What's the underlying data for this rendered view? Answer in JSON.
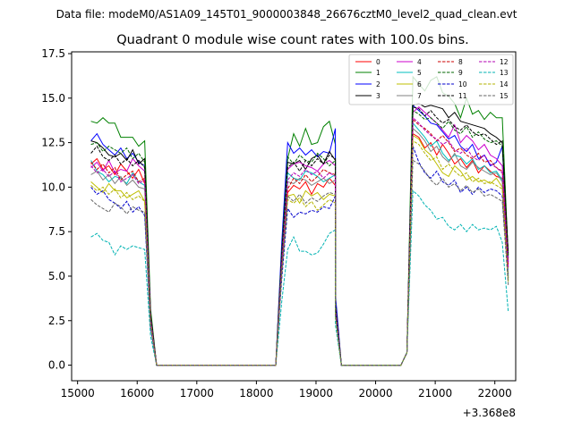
{
  "chart_data": {
    "type": "line",
    "suptitle": "Data file: modeM0/AS1A09_145T01_9000003848_26676cztM0_level2_quad_clean.evt",
    "title": "Quadrant 0 module wise count rates with 100.0s bins.",
    "xlabel": "",
    "ylabel": "",
    "x_offset_label": "+3.368e8",
    "xlim": [
      14900,
      22350
    ],
    "ylim": [
      -0.875,
      17.6
    ],
    "xticks": [
      15000,
      16000,
      17000,
      18000,
      19000,
      20000,
      21000,
      22000
    ],
    "xtick_labels": [
      "15000",
      "16000",
      "17000",
      "18000",
      "19000",
      "20000",
      "21000",
      "22000"
    ],
    "yticks": [
      0.0,
      2.5,
      5.0,
      7.5,
      10.0,
      12.5,
      15.0,
      17.5
    ],
    "ytick_labels": [
      "0.0",
      "2.5",
      "5.0",
      "7.5",
      "10.0",
      "12.5",
      "15.0",
      "17.5"
    ],
    "legend": {
      "location": "top-right",
      "columns": 4
    },
    "segments": [
      {
        "x_start": 15225,
        "x_end": 16125,
        "ramp_down": [
          16225,
          16325
        ]
      },
      {
        "x_start": 18325,
        "ramp_up": [
          18425,
          18525
        ],
        "x_end": 19225,
        "ramp_down": [
          19325,
          19425
        ]
      },
      {
        "x_start": 20425,
        "ramp_up": [
          20525,
          20625
        ],
        "x_end": 22025
      }
    ],
    "series": [
      {
        "name": "0",
        "color": "#ff0000",
        "dash": false,
        "seg1": [
          11.3,
          11.6,
          11.0,
          11.2,
          10.7,
          11.3,
          10.9,
          10.5,
          11.0,
          10.2
        ],
        "seg2": [
          9.7,
          10.1,
          9.9,
          10.3,
          9.6,
          10.2,
          10.0,
          10.5,
          10.1
        ],
        "seg3": [
          13.0,
          12.8,
          12.2,
          12.5,
          11.8,
          12.4,
          11.9,
          11.3,
          11.6,
          11.1,
          11.5,
          10.8,
          11.2,
          10.9,
          10.6,
          10.5,
          5.5
        ]
      },
      {
        "name": "1",
        "color": "#008000",
        "dash": false,
        "seg1": [
          13.7,
          13.6,
          13.9,
          13.6,
          13.6,
          12.8,
          12.8,
          12.8,
          12.3,
          12.6
        ],
        "seg2": [
          11.6,
          13.0,
          12.3,
          13.3,
          12.4,
          12.5,
          13.4,
          13.7,
          12.4
        ],
        "seg3": [
          16.2,
          15.8,
          15.4,
          16.0,
          16.2,
          15.3,
          15.1,
          14.7,
          13.9,
          15.0,
          14.1,
          14.3,
          13.8,
          14.2,
          13.9,
          13.9,
          6.0
        ]
      },
      {
        "name": "2",
        "color": "#0000ff",
        "dash": false,
        "seg1": [
          12.6,
          13.0,
          12.4,
          12.1,
          11.8,
          12.2,
          11.6,
          11.9,
          11.4,
          11.2
        ],
        "seg2": [
          12.5,
          11.9,
          12.2,
          11.8,
          12.1,
          11.7,
          12.0,
          11.9,
          13.3
        ],
        "seg3": [
          14.6,
          14.3,
          14.0,
          13.6,
          13.5,
          13.1,
          12.7,
          12.9,
          12.3,
          12.0,
          12.4,
          11.6,
          11.8,
          11.2,
          11.4,
          12.3,
          5.8
        ]
      },
      {
        "name": "3",
        "color": "#000000",
        "dash": false,
        "seg1": [
          12.6,
          12.5,
          12.2,
          11.8,
          11.7,
          11.9,
          11.5,
          12.1,
          11.3,
          11.6
        ],
        "seg2": [
          11.4,
          11.3,
          11.5,
          11.0,
          11.6,
          11.8,
          11.3,
          12.0,
          11.5
        ],
        "seg3": [
          14.6,
          14.7,
          14.5,
          14.6,
          14.5,
          14.4,
          13.9,
          14.2,
          13.7,
          13.6,
          13.5,
          13.4,
          13.3,
          13.0,
          12.8,
          12.5,
          6.2
        ]
      },
      {
        "name": "4",
        "color": "#cc00cc",
        "dash": false,
        "seg1": [
          11.1,
          11.4,
          10.9,
          11.5,
          10.8,
          11.0,
          10.9,
          11.6,
          11.2,
          10.9
        ],
        "seg2": [
          11.0,
          11.3,
          11.4,
          11.2,
          11.1,
          10.9,
          11.3,
          11.5,
          11.2
        ],
        "seg3": [
          14.2,
          14.5,
          14.2,
          13.9,
          13.6,
          13.2,
          12.8,
          13.5,
          12.5,
          12.9,
          12.6,
          12.1,
          12.4,
          11.8,
          11.6,
          11.2,
          5.7
        ]
      },
      {
        "name": "5",
        "color": "#00bfbf",
        "dash": false,
        "seg1": [
          11.5,
          10.9,
          10.7,
          10.3,
          10.6,
          10.5,
          10.2,
          10.8,
          10.3,
          10.1
        ],
        "seg2": [
          10.8,
          10.5,
          10.4,
          10.9,
          10.8,
          10.6,
          10.3,
          10.5,
          10.7
        ],
        "seg3": [
          13.6,
          13.2,
          12.8,
          12.3,
          12.6,
          11.9,
          11.5,
          11.8,
          11.7,
          11.3,
          11.6,
          11.0,
          11.2,
          10.8,
          10.9,
          10.4,
          5.0
        ]
      },
      {
        "name": "6",
        "color": "#bfbf00",
        "dash": false,
        "seg1": [
          10.3,
          10.0,
          9.7,
          10.2,
          9.8,
          9.8,
          9.4,
          9.6,
          9.8,
          9.2
        ],
        "seg2": [
          9.5,
          9.6,
          9.1,
          9.8,
          9.5,
          9.7,
          9.3,
          9.6,
          9.5
        ],
        "seg3": [
          12.9,
          12.7,
          12.1,
          11.8,
          11.3,
          10.8,
          10.6,
          11.2,
          10.9,
          10.4,
          10.6,
          10.3,
          10.4,
          10.2,
          10.5,
          10.0,
          4.8
        ]
      },
      {
        "name": "7",
        "color": "#808080",
        "dash": false,
        "seg1": [
          10.7,
          10.9,
          10.4,
          10.7,
          10.2,
          10.6,
          10.1,
          10.4,
          10.0,
          9.9
        ],
        "seg2": [
          10.3,
          10.2,
          10.5,
          10.4,
          10.1,
          10.3,
          10.5,
          10.2,
          10.4
        ],
        "seg3": [
          13.3,
          13.0,
          12.6,
          12.0,
          12.3,
          11.7,
          11.4,
          11.9,
          11.2,
          11.0,
          11.4,
          11.1,
          10.9,
          10.7,
          10.8,
          10.3,
          5.1
        ]
      },
      {
        "name": "8",
        "color": "#cc0000",
        "dash": true,
        "seg1": [
          11.4,
          11.0,
          11.3,
          10.8,
          11.1,
          10.4,
          10.7,
          10.9,
          10.3,
          10.5
        ],
        "seg2": [
          9.9,
          10.5,
          10.2,
          10.7,
          10.3,
          10.6,
          11.0,
          10.8,
          10.7
        ],
        "seg3": [
          13.8,
          13.5,
          13.3,
          13.0,
          12.6,
          12.9,
          12.5,
          12.0,
          12.2,
          11.8,
          11.6,
          11.9,
          11.4,
          11.5,
          11.1,
          10.9,
          5.6
        ]
      },
      {
        "name": "9",
        "color": "#006600",
        "dash": true,
        "seg1": [
          12.4,
          12.5,
          12.0,
          12.3,
          12.1,
          11.9,
          12.2,
          11.6,
          11.9,
          11.4
        ],
        "seg2": [
          11.7,
          11.3,
          11.8,
          11.5,
          11.4,
          11.9,
          11.6,
          11.2,
          11.5
        ],
        "seg3": [
          14.3,
          14.1,
          13.8,
          13.9,
          13.6,
          13.3,
          13.7,
          13.2,
          13.0,
          13.4,
          12.8,
          13.1,
          12.7,
          12.5,
          12.6,
          12.3,
          6.1
        ]
      },
      {
        "name": "10",
        "color": "#0000cc",
        "dash": true,
        "seg1": [
          10.0,
          9.6,
          9.8,
          9.3,
          9.1,
          8.8,
          9.2,
          8.6,
          8.9,
          8.4
        ],
        "seg2": [
          8.8,
          8.3,
          8.6,
          8.5,
          8.7,
          8.6,
          8.9,
          8.8,
          9.5
        ],
        "seg3": [
          12.3,
          11.4,
          10.8,
          10.5,
          10.9,
          10.3,
          10.1,
          10.4,
          9.7,
          10.0,
          9.6,
          10.0,
          9.7,
          9.9,
          9.8,
          9.5,
          4.9
        ]
      },
      {
        "name": "11",
        "color": "#000000",
        "dash": true,
        "seg1": [
          11.9,
          12.3,
          11.7,
          11.5,
          11.8,
          11.3,
          11.6,
          11.2,
          11.5,
          11.1
        ],
        "seg2": [
          11.1,
          11.4,
          10.9,
          11.5,
          11.2,
          11.6,
          11.3,
          11.8,
          11.6
        ],
        "seg3": [
          14.5,
          14.4,
          14.0,
          14.3,
          13.9,
          13.6,
          13.8,
          13.4,
          13.2,
          13.5,
          13.1,
          12.9,
          13.0,
          12.7,
          12.4,
          12.6,
          6.3
        ]
      },
      {
        "name": "12",
        "color": "#b300b3",
        "dash": true,
        "seg1": [
          11.2,
          10.8,
          11.0,
          10.6,
          10.9,
          10.3,
          10.5,
          10.7,
          10.2,
          10.4
        ],
        "seg2": [
          10.4,
          10.8,
          10.6,
          11.0,
          10.7,
          10.9,
          10.5,
          10.8,
          10.6
        ],
        "seg3": [
          13.9,
          13.6,
          13.2,
          12.9,
          12.7,
          12.4,
          12.6,
          12.1,
          11.9,
          12.2,
          11.7,
          11.5,
          11.8,
          11.3,
          11.1,
          10.8,
          5.4
        ]
      },
      {
        "name": "13",
        "color": "#00b3b3",
        "dash": true,
        "seg1": [
          7.2,
          7.4,
          7.0,
          6.9,
          6.2,
          6.7,
          6.5,
          6.7,
          6.6,
          6.5
        ],
        "seg2": [
          6.5,
          7.2,
          6.4,
          6.4,
          6.2,
          6.3,
          6.8,
          7.4,
          7.6
        ],
        "seg3": [
          9.8,
          9.5,
          9.0,
          8.7,
          8.2,
          8.3,
          7.8,
          7.6,
          7.9,
          7.5,
          7.9,
          7.6,
          7.7,
          7.6,
          7.8,
          6.9,
          3.0
        ]
      },
      {
        "name": "14",
        "color": "#b3b300",
        "dash": true,
        "seg1": [
          10.1,
          9.8,
          10.0,
          9.6,
          9.9,
          9.4,
          9.7,
          9.3,
          9.5,
          9.2
        ],
        "seg2": [
          9.3,
          9.1,
          9.4,
          8.9,
          9.2,
          8.7,
          9.0,
          9.3,
          9.1
        ],
        "seg3": [
          12.6,
          12.4,
          11.9,
          11.5,
          11.7,
          11.0,
          11.3,
          10.9,
          10.6,
          10.8,
          10.3,
          10.5,
          10.2,
          10.3,
          10.1,
          9.9,
          4.7
        ]
      },
      {
        "name": "15",
        "color": "#666666",
        "dash": true,
        "seg1": [
          9.3,
          9.0,
          8.8,
          8.6,
          9.1,
          8.9,
          8.5,
          8.9,
          8.7,
          8.6
        ],
        "seg2": [
          9.5,
          9.2,
          9.6,
          9.1,
          9.4,
          9.2,
          9.5,
          9.7,
          9.6
        ],
        "seg3": [
          11.5,
          11.3,
          10.9,
          10.4,
          10.1,
          10.5,
          10.0,
          10.2,
          9.8,
          10.1,
          9.7,
          9.9,
          9.5,
          9.6,
          9.4,
          9.2,
          4.5
        ]
      }
    ]
  }
}
